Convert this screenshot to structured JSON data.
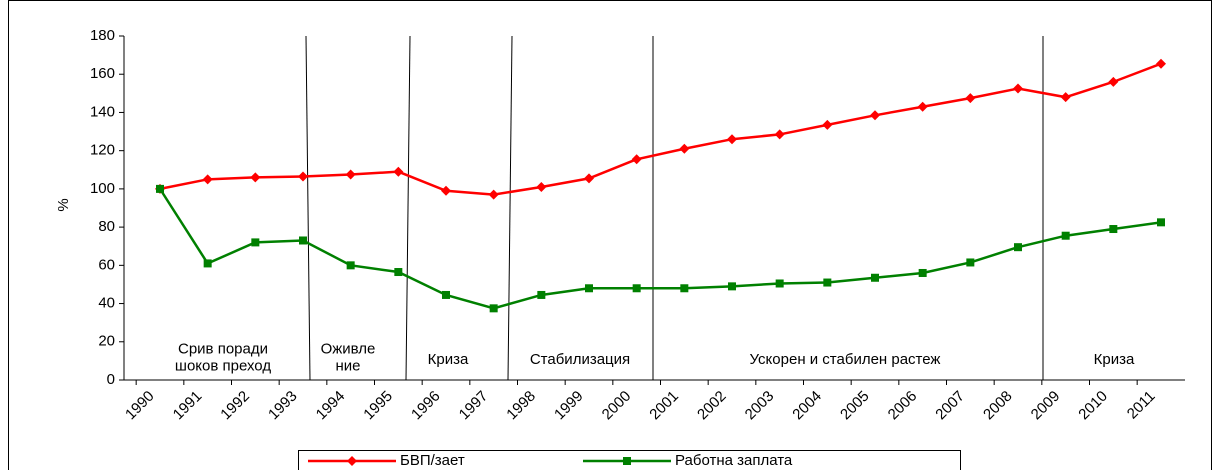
{
  "chart_data": {
    "type": "line",
    "ylabel": "%",
    "categories": [
      "1990",
      "1991",
      "1992",
      "1993",
      "1994",
      "1995",
      "1996",
      "1997",
      "1998",
      "1999",
      "2000",
      "2001",
      "2002",
      "2003",
      "2004",
      "2005",
      "2006",
      "2007",
      "2008",
      "2009",
      "2010",
      "2011"
    ],
    "series": [
      {
        "name": "БВП/зает",
        "color": "#ff0000",
        "marker": "diamond",
        "values": [
          100,
          105,
          106,
          106.5,
          107.5,
          109,
          99,
          97,
          101,
          105.5,
          115.5,
          121,
          126,
          128.5,
          133.5,
          138.5,
          143,
          147.5,
          152.5,
          148,
          156,
          165.5
        ]
      },
      {
        "name": "Работна заплата",
        "color": "#008000",
        "marker": "square",
        "values": [
          100,
          61,
          72,
          73,
          60,
          56.5,
          44.5,
          37.5,
          44.5,
          48,
          48,
          48,
          49,
          50.5,
          51,
          53.5,
          56,
          61.5,
          69.5,
          75.5,
          79,
          82.5
        ]
      }
    ],
    "ylim": [
      0,
      180
    ],
    "yticks": [
      0,
      20,
      40,
      60,
      80,
      100,
      120,
      140,
      160,
      180
    ],
    "grid": false,
    "annotations": [
      {
        "lines": [
          "Срив поради",
          "шоков преход"
        ]
      },
      {
        "lines": [
          "Оживле",
          "ние"
        ]
      },
      {
        "lines": [
          "Криза"
        ]
      },
      {
        "lines": [
          "Стабилизация"
        ]
      },
      {
        "lines": [
          "Ускорен и стабилен растеж"
        ]
      },
      {
        "lines": [
          "Криза"
        ]
      }
    ],
    "legend": "bottom"
  }
}
